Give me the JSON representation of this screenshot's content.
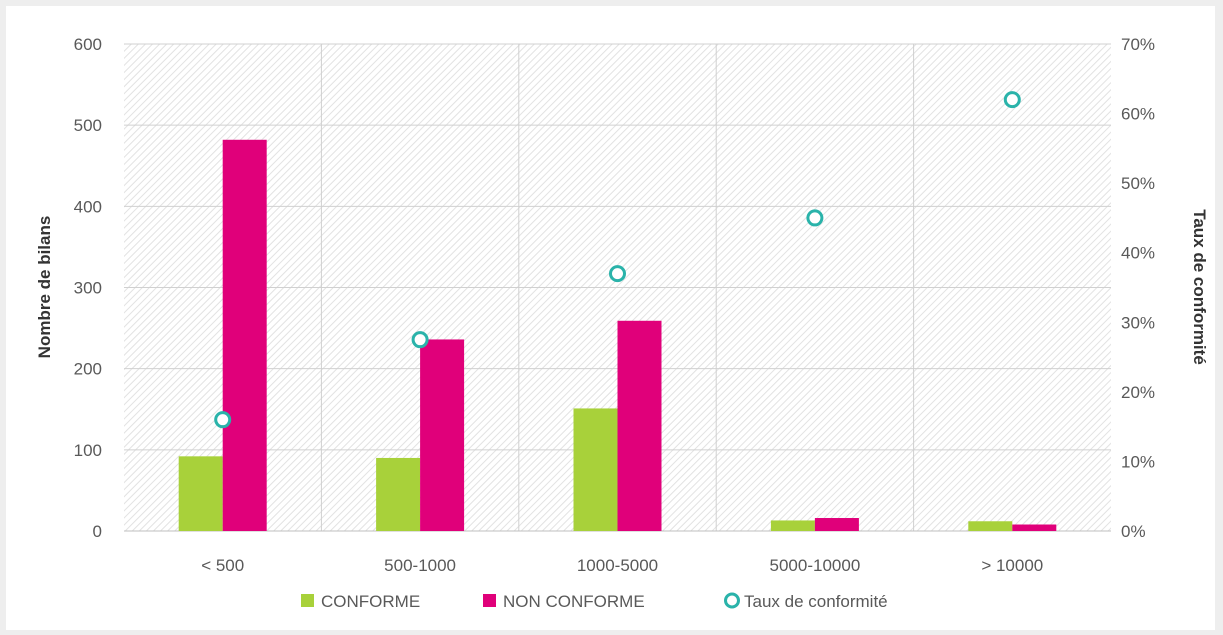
{
  "chart_data": {
    "type": "bar",
    "categories": [
      "< 500",
      "500-1000",
      "1000-5000",
      "5000-10000",
      "> 10000"
    ],
    "series": [
      {
        "name": "CONFORME",
        "kind": "bar",
        "axis": "left",
        "color": "#a8d13a",
        "values": [
          92,
          90,
          151,
          13,
          12
        ]
      },
      {
        "name": "NON CONFORME",
        "kind": "bar",
        "axis": "left",
        "color": "#e0007a",
        "values": [
          482,
          236,
          259,
          16,
          8
        ]
      },
      {
        "name": "Taux de conformité",
        "kind": "scatter",
        "axis": "right",
        "color": "#2ab3aa",
        "values": [
          16,
          27.5,
          37,
          45,
          62
        ]
      }
    ],
    "ylabel": "Nombre de bilans",
    "ylabel_right": "Taux de conformité",
    "ylim": [
      0,
      600
    ],
    "ylim_right": [
      0,
      70
    ],
    "yticks": [
      "0",
      "100",
      "200",
      "300",
      "400",
      "500",
      "600"
    ],
    "yticks_right": [
      "0%",
      "10%",
      "20%",
      "30%",
      "40%",
      "50%",
      "60%",
      "70%"
    ],
    "grid": true,
    "legend_position": "bottom-center"
  }
}
